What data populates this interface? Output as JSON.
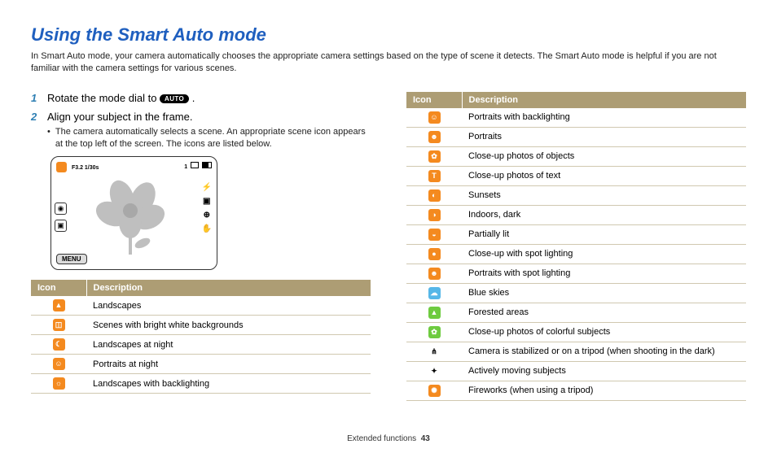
{
  "colors": {
    "title": "#1f5fbf",
    "table_header_bg": "#ad9d74",
    "step_num": "#2e7fb3",
    "orange": "#f48a1f",
    "blue": "#56b7e8",
    "green": "#6ecb3f",
    "dark": "#222222",
    "border": "#d0c8b0"
  },
  "title": "Using the Smart Auto mode",
  "intro": "In Smart Auto mode, your camera automatically chooses the appropriate camera settings based on the type of scene it detects. The Smart Auto mode is helpful if you are not familiar with the camera settings for various scenes.",
  "steps": [
    {
      "num": "1",
      "text_before": "Rotate the mode dial to ",
      "pill": "AUTO",
      "text_after": " ."
    },
    {
      "num": "2",
      "text_before": "Align your subject in the frame.",
      "bullet": "The camera automatically selects a scene. An appropriate scene icon appears at the top left of the screen. The icons are listed below."
    }
  ],
  "camera": {
    "top_meta": "F3.2  1/30s",
    "top_right_1": "1",
    "menu_label": "MENU"
  },
  "table_headers": {
    "icon": "Icon",
    "desc": "Description"
  },
  "left_rows": [
    {
      "glyph": "▲",
      "bg": "orange",
      "desc": "Landscapes"
    },
    {
      "glyph": "◫",
      "bg": "orange",
      "desc": "Scenes with bright white backgrounds"
    },
    {
      "glyph": "☾",
      "bg": "orange",
      "desc": "Landscapes at night"
    },
    {
      "glyph": "☺",
      "bg": "orange",
      "desc": "Portraits at night"
    },
    {
      "glyph": "☼",
      "bg": "orange",
      "desc": "Landscapes with backlighting"
    }
  ],
  "right_rows": [
    {
      "glyph": "☺",
      "bg": "orange",
      "desc": "Portraits with backlighting"
    },
    {
      "glyph": "☻",
      "bg": "orange",
      "desc": "Portraits"
    },
    {
      "glyph": "✿",
      "bg": "orange",
      "desc": "Close-up photos of objects"
    },
    {
      "glyph": "T",
      "bg": "orange",
      "desc": "Close-up photos of text"
    },
    {
      "glyph": "◐",
      "bg": "orange",
      "desc": "Sunsets"
    },
    {
      "glyph": "◑",
      "bg": "orange",
      "desc": "Indoors, dark"
    },
    {
      "glyph": "◒",
      "bg": "orange",
      "desc": "Partially lit"
    },
    {
      "glyph": "●",
      "bg": "orange",
      "desc": "Close-up with spot lighting"
    },
    {
      "glyph": "☻",
      "bg": "orange",
      "desc": "Portraits with spot lighting"
    },
    {
      "glyph": "☁",
      "bg": "blue",
      "desc": "Blue skies"
    },
    {
      "glyph": "▲",
      "bg": "green",
      "desc": "Forested areas"
    },
    {
      "glyph": "✿",
      "bg": "green",
      "desc": "Close-up photos of colorful subjects"
    },
    {
      "glyph": "⋔",
      "bg": "dark",
      "dark_text": true,
      "desc": "Camera is stabilized or on a tripod (when shooting in the dark)"
    },
    {
      "glyph": "✦",
      "bg": "dark",
      "dark_text": true,
      "desc": "Actively moving subjects"
    },
    {
      "glyph": "✺",
      "bg": "orange",
      "desc": "Fireworks (when using a tripod)"
    }
  ],
  "footer": {
    "section": "Extended functions",
    "page": "43"
  }
}
